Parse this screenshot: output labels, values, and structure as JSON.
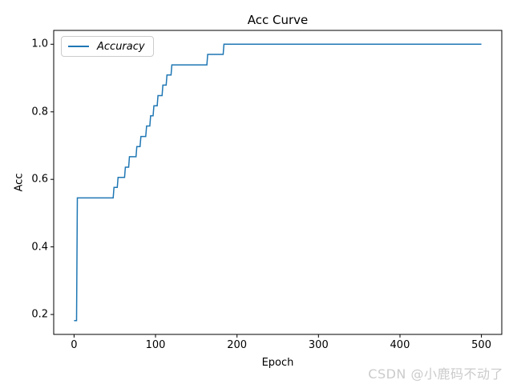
{
  "figure": {
    "title": "Acc Curve",
    "watermark": "CSDN @小鹿码不动了"
  },
  "legend": {
    "label": "Accuracy",
    "position": "upper left",
    "italic": true
  },
  "colors": {
    "line": "#1f77b4",
    "spine": "#000000",
    "text": "#000000",
    "watermark": "#cbcbcb",
    "legend_border": "#cccccc",
    "background": "#ffffff"
  },
  "chart_data": {
    "type": "line",
    "title": "Acc Curve",
    "xlabel": "Epoch",
    "ylabel": "Acc",
    "xlim": [
      -25,
      525
    ],
    "ylim": [
      0.141,
      1.041
    ],
    "grid": false,
    "legend_position": "upper left",
    "xticks": [
      {
        "v": 0,
        "label": "0"
      },
      {
        "v": 100,
        "label": "100"
      },
      {
        "v": 200,
        "label": "200"
      },
      {
        "v": 300,
        "label": "300"
      },
      {
        "v": 400,
        "label": "400"
      },
      {
        "v": 500,
        "label": "500"
      }
    ],
    "yticks": [
      {
        "v": 0.2,
        "label": "0.2"
      },
      {
        "v": 0.4,
        "label": "0.4"
      },
      {
        "v": 0.6,
        "label": "0.6"
      },
      {
        "v": 0.8,
        "label": "0.8"
      },
      {
        "v": 1.0,
        "label": "1.0"
      }
    ],
    "series": [
      {
        "name": "Accuracy",
        "color": "#1f77b4",
        "line_width": 1.5,
        "points": [
          [
            0,
            0.182
          ],
          [
            3,
            0.182
          ],
          [
            4,
            0.545
          ],
          [
            48,
            0.545
          ],
          [
            49,
            0.576
          ],
          [
            53,
            0.576
          ],
          [
            54,
            0.606
          ],
          [
            62,
            0.606
          ],
          [
            63,
            0.636
          ],
          [
            67,
            0.636
          ],
          [
            68,
            0.667
          ],
          [
            76,
            0.667
          ],
          [
            77,
            0.697
          ],
          [
            81,
            0.697
          ],
          [
            82,
            0.727
          ],
          [
            88,
            0.727
          ],
          [
            89,
            0.758
          ],
          [
            93,
            0.758
          ],
          [
            94,
            0.788
          ],
          [
            97,
            0.788
          ],
          [
            98,
            0.818
          ],
          [
            102,
            0.818
          ],
          [
            103,
            0.848
          ],
          [
            108,
            0.848
          ],
          [
            109,
            0.879
          ],
          [
            113,
            0.879
          ],
          [
            114,
            0.909
          ],
          [
            119,
            0.909
          ],
          [
            120,
            0.939
          ],
          [
            163,
            0.939
          ],
          [
            164,
            0.97
          ],
          [
            183,
            0.97
          ],
          [
            184,
            1.0
          ],
          [
            500,
            1.0
          ]
        ]
      }
    ]
  }
}
